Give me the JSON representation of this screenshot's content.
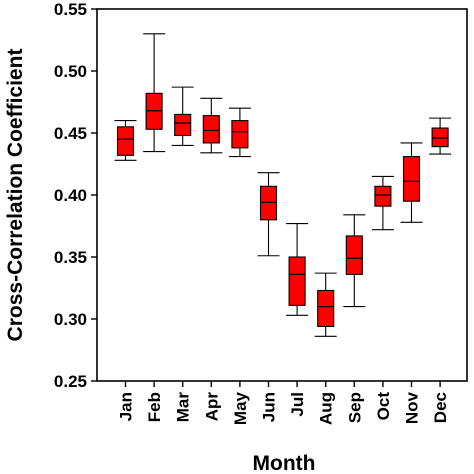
{
  "chart_data": {
    "type": "box",
    "xlabel": "Month",
    "ylabel": "Cross-Correlation Coefficient",
    "ylim": [
      0.25,
      0.55
    ],
    "yticks": [
      "0.25",
      "0.30",
      "0.35",
      "0.40",
      "0.45",
      "0.50",
      "0.55"
    ],
    "grid": false,
    "box_color": "#ff0000",
    "categories": [
      "Jan",
      "Feb",
      "Mar",
      "Apr",
      "May",
      "Jun",
      "Jul",
      "Aug",
      "Sep",
      "Oct",
      "Nov",
      "Dec"
    ],
    "boxes": [
      {
        "min": 0.428,
        "q1": 0.432,
        "median": 0.445,
        "q3": 0.455,
        "max": 0.46
      },
      {
        "min": 0.435,
        "q1": 0.453,
        "median": 0.468,
        "q3": 0.482,
        "max": 0.53
      },
      {
        "min": 0.44,
        "q1": 0.448,
        "median": 0.458,
        "q3": 0.465,
        "max": 0.487
      },
      {
        "min": 0.434,
        "q1": 0.442,
        "median": 0.452,
        "q3": 0.464,
        "max": 0.478
      },
      {
        "min": 0.431,
        "q1": 0.438,
        "median": 0.451,
        "q3": 0.46,
        "max": 0.47
      },
      {
        "min": 0.351,
        "q1": 0.38,
        "median": 0.394,
        "q3": 0.407,
        "max": 0.418
      },
      {
        "min": 0.303,
        "q1": 0.311,
        "median": 0.336,
        "q3": 0.35,
        "max": 0.377
      },
      {
        "min": 0.286,
        "q1": 0.294,
        "median": 0.31,
        "q3": 0.323,
        "max": 0.337
      },
      {
        "min": 0.31,
        "q1": 0.336,
        "median": 0.349,
        "q3": 0.367,
        "max": 0.384
      },
      {
        "min": 0.372,
        "q1": 0.391,
        "median": 0.4,
        "q3": 0.407,
        "max": 0.415
      },
      {
        "min": 0.378,
        "q1": 0.395,
        "median": 0.411,
        "q3": 0.431,
        "max": 0.442
      },
      {
        "min": 0.433,
        "q1": 0.439,
        "median": 0.446,
        "q3": 0.454,
        "max": 0.462
      }
    ]
  }
}
